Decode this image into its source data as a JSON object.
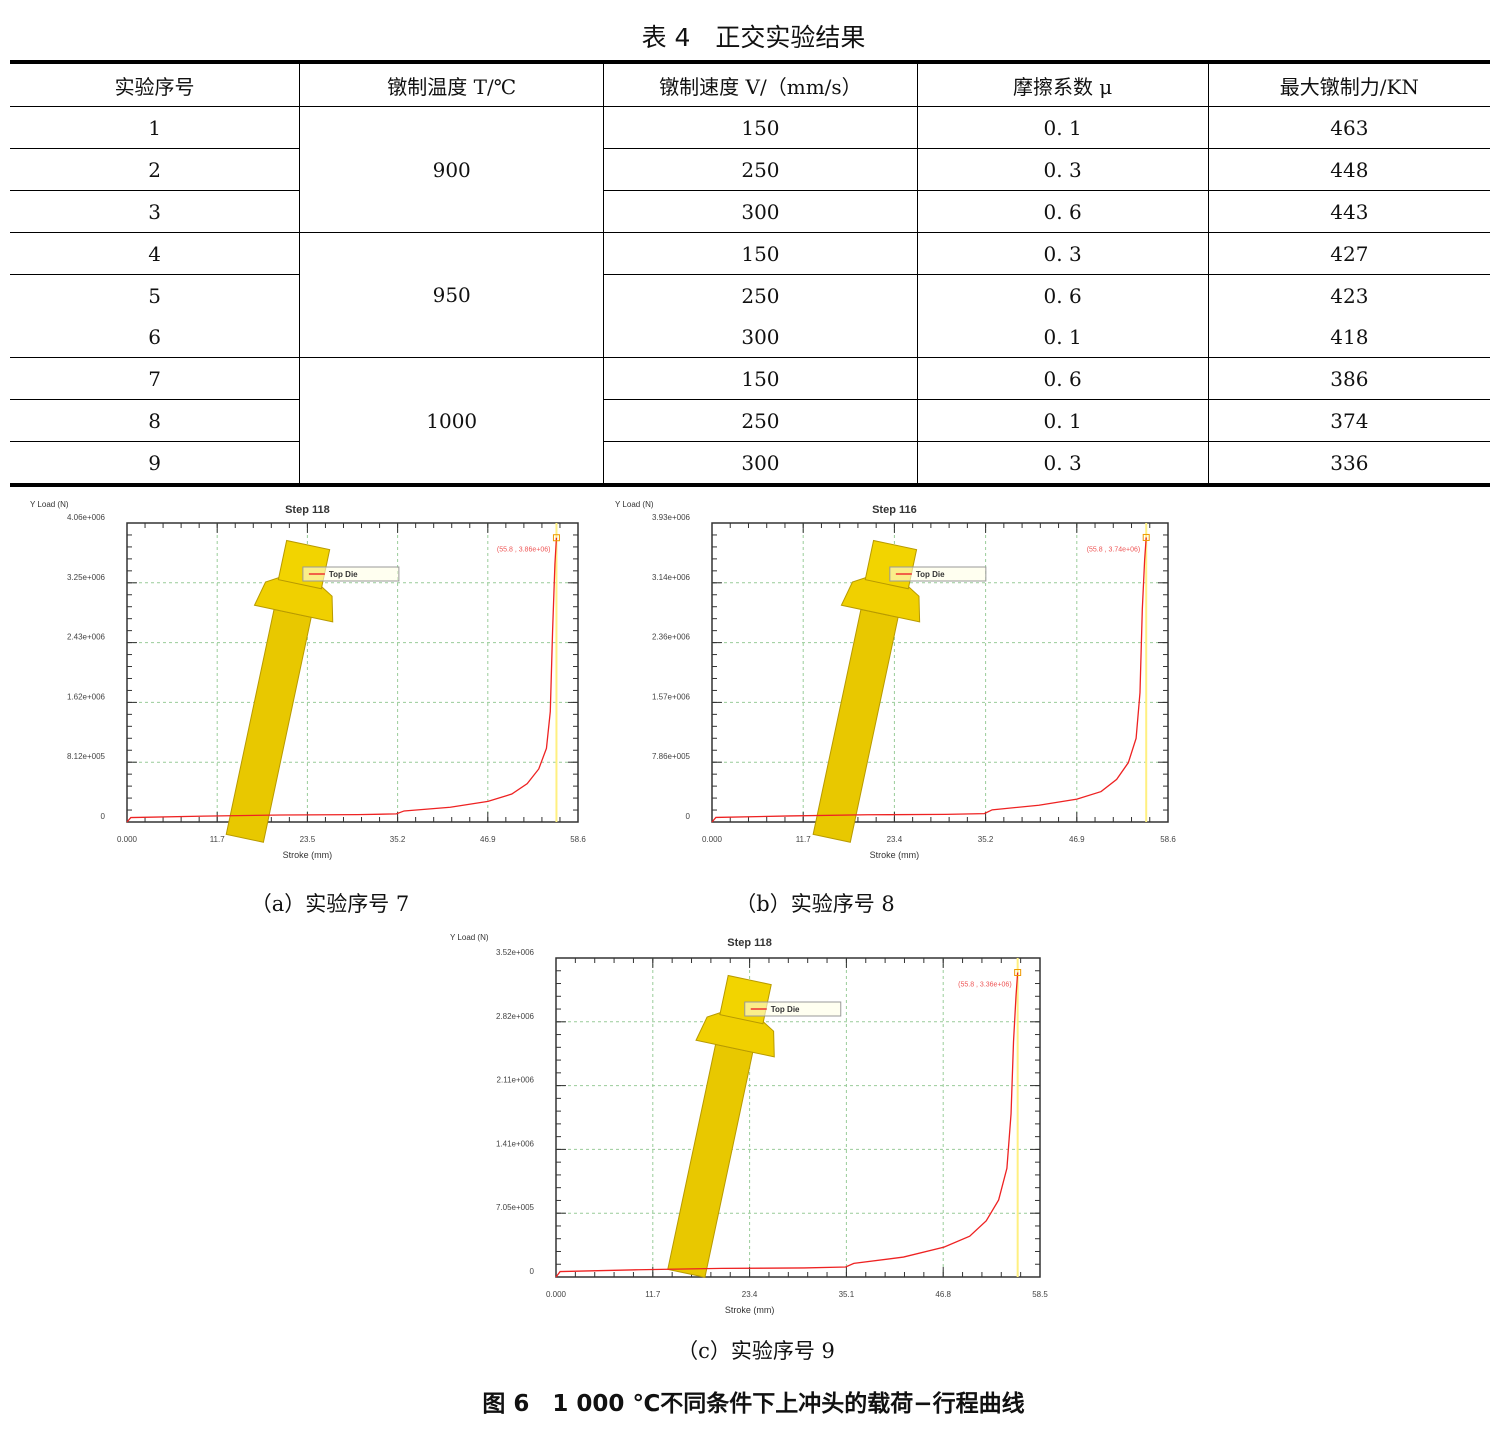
{
  "table": {
    "title": "表 4　正交实验结果",
    "headers": [
      "实验序号",
      "镦制温度 T/℃",
      "镦制速度 V/（mm/s）",
      "摩擦系数 μ",
      "最大镦制力/KN"
    ],
    "rows": [
      [
        "1",
        "900",
        "150",
        "0. 1",
        "463"
      ],
      [
        "2",
        "900",
        "250",
        "0. 3",
        "448"
      ],
      [
        "3",
        "900",
        "300",
        "0. 6",
        "443"
      ],
      [
        "4",
        "950",
        "150",
        "0. 3",
        "427"
      ],
      [
        "5",
        "950",
        "250",
        "0. 6",
        "423"
      ],
      [
        "6",
        "950",
        "300",
        "0. 1",
        "418"
      ],
      [
        "7",
        "1000",
        "150",
        "0. 6",
        "386"
      ],
      [
        "8",
        "1000",
        "250",
        "0. 1",
        "374"
      ],
      [
        "9",
        "1000",
        "300",
        "0. 3",
        "336"
      ]
    ]
  },
  "figure_caption": "图 6　1 000 ℃不同条件下上冲头的载荷−行程曲线",
  "chart_data": [
    {
      "type": "line",
      "title": "Step  118",
      "xlabel": "Stroke (mm)",
      "ylabel": "Y Load (N)",
      "legend": "Top Die",
      "legend_placement": "top-center",
      "grid": true,
      "caption": "（a）实验序号 7",
      "annotation": "(55.8 , 3.86e+06)",
      "xticks": [
        "0.000",
        "11.7",
        "23.5",
        "35.2",
        "46.9",
        "58.6"
      ],
      "yticks": [
        "0",
        "8.12e+005",
        "1.62e+006",
        "2.43e+006",
        "3.25e+006",
        "4.06e+006"
      ],
      "xlim": [
        0,
        58.6
      ],
      "ylim": [
        0,
        4060000
      ],
      "x": [
        0,
        0.5,
        10,
        20,
        30,
        35,
        36,
        42,
        46.9,
        50,
        52,
        53.5,
        54.5,
        55,
        55.3,
        55.6,
        55.8
      ],
      "y": [
        0,
        60000,
        80000,
        95000,
        100000,
        110000,
        150000,
        200000,
        280000,
        380000,
        520000,
        720000,
        1000000,
        1500000,
        2600000,
        3500000,
        3860000
      ]
    },
    {
      "type": "line",
      "title": "Step  116",
      "xlabel": "Stroke (mm)",
      "ylabel": "Y Load (N)",
      "legend": "Top Die",
      "legend_placement": "top-center",
      "grid": true,
      "caption": "（b）实验序号 8",
      "annotation": "(55.8 , 3.74e+06)",
      "xticks": [
        "0.000",
        "11.7",
        "23.4",
        "35.2",
        "46.9",
        "58.6"
      ],
      "yticks": [
        "0",
        "7.86e+005",
        "1.57e+006",
        "2.36e+006",
        "3.14e+006",
        "3.93e+006"
      ],
      "xlim": [
        0,
        58.6
      ],
      "ylim": [
        0,
        3930000
      ],
      "x": [
        0,
        0.5,
        10,
        20,
        30,
        35,
        36,
        42,
        46.9,
        50,
        52,
        53.5,
        54.5,
        55,
        55.3,
        55.6,
        55.8
      ],
      "y": [
        0,
        60000,
        80000,
        95000,
        100000,
        110000,
        160000,
        220000,
        300000,
        400000,
        560000,
        780000,
        1100000,
        1700000,
        2800000,
        3450000,
        3740000
      ]
    },
    {
      "type": "line",
      "title": "Step  118",
      "xlabel": "Stroke (mm)",
      "ylabel": "Y Load (N)",
      "legend": "Top Die",
      "legend_placement": "top-center",
      "grid": true,
      "caption": "（c）实验序号 9",
      "annotation": "(55.8 , 3.36e+06)",
      "xticks": [
        "0.000",
        "11.7",
        "23.4",
        "35.1",
        "46.8",
        "58.5"
      ],
      "yticks": [
        "0",
        "7.05e+005",
        "1.41e+006",
        "2.11e+006",
        "2.82e+006",
        "3.52e+006"
      ],
      "xlim": [
        0,
        58.5
      ],
      "ylim": [
        0,
        3520000
      ],
      "x": [
        0,
        0.5,
        10,
        20,
        30,
        35,
        36,
        42,
        46.9,
        50,
        52,
        53.5,
        54.5,
        55,
        55.3,
        55.6,
        55.8
      ],
      "y": [
        0,
        60000,
        80000,
        95000,
        100000,
        110000,
        150000,
        220000,
        330000,
        450000,
        620000,
        850000,
        1200000,
        1800000,
        2600000,
        3100000,
        3360000
      ]
    }
  ]
}
